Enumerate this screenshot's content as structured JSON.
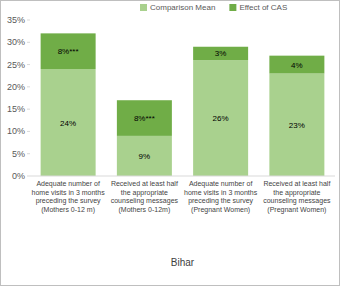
{
  "chart_data": {
    "type": "bar",
    "stacked": true,
    "data_labels": true,
    "legend": "top-right",
    "grid": false,
    "xlabel": "Bihar",
    "categories": [
      "Adequate number of home visits in 3 months preceding the survey (Mothers 0-12 m)",
      "Received at least half the appropriate counseling messages (Mothers 0-12m)",
      "Adequate number of home visits in 3 months preceding the survey (Pregnant Women)",
      "Received at least half the appropriate counseling messages (Pregnant Women)"
    ],
    "series": [
      {
        "name": "Comparison Mean",
        "color": "#a9d18e",
        "values": [
          24,
          9,
          26,
          23
        ],
        "value_labels": [
          "24%",
          "9%",
          "26%",
          "23%"
        ]
      },
      {
        "name": "Effect of CAS",
        "color": "#70ad47",
        "values": [
          8,
          8,
          3,
          4
        ],
        "value_labels": [
          "8%***",
          "8%***",
          "3%",
          "4%"
        ]
      }
    ],
    "ylim": [
      0,
      35
    ],
    "yticks": [
      {
        "value": 0,
        "label": "0%"
      },
      {
        "value": 5,
        "label": "5%"
      },
      {
        "value": 10,
        "label": "10%"
      },
      {
        "value": 15,
        "label": "15%"
      },
      {
        "value": 20,
        "label": "20%"
      },
      {
        "value": 25,
        "label": "25%"
      },
      {
        "value": 30,
        "label": "30%"
      },
      {
        "value": 35,
        "label": "35%"
      }
    ]
  }
}
